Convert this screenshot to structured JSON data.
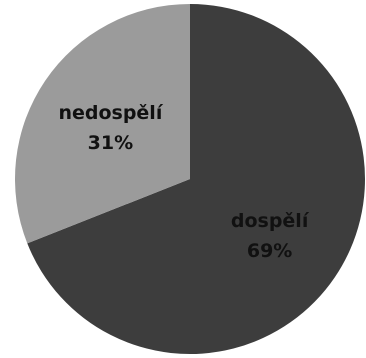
{
  "chart_data": {
    "type": "pie",
    "title": "",
    "slices": [
      {
        "label": "dospělí",
        "value": 69,
        "value_label": "69%",
        "color": "#3d3d3d"
      },
      {
        "label": "nedospělí",
        "value": 31,
        "value_label": "31%",
        "color": "#9b9b9b"
      }
    ],
    "start_angle_deg": 0,
    "direction": "clockwise",
    "legend": "none"
  }
}
